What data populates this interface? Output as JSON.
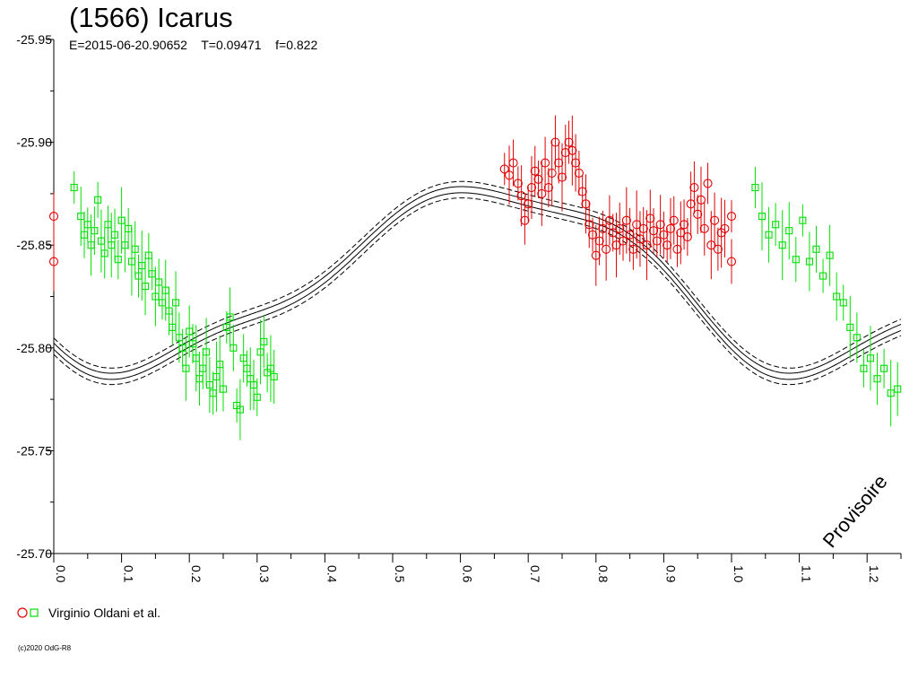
{
  "title": "(1566) Icarus",
  "subtitle": "E=2015-06-20.90652    T=0.09471    f=0.822",
  "watermark": "Provisoire",
  "legend_label": "Virginio Oldani et al.",
  "copyright": "(c)2020 OdG-R8",
  "colors": {
    "red": "#e00000",
    "green": "#00e000",
    "axis": "#000000"
  },
  "chart_data": {
    "type": "scatter",
    "title": "(1566) Icarus",
    "xlabel": "",
    "ylabel": "",
    "xlim": [
      0.0,
      1.25
    ],
    "ylim": [
      -25.95,
      -25.7
    ],
    "y_inverted": true,
    "x_ticks": [
      "0.0",
      "0.1",
      "0.2",
      "0.3",
      "0.4",
      "0.5",
      "0.6",
      "0.7",
      "0.8",
      "0.9",
      "1.0",
      "1.1",
      "1.2"
    ],
    "y_ticks": [
      "-25.95",
      "-25.90",
      "-25.85",
      "-25.80",
      "-25.75",
      "-25.70"
    ],
    "legend": "bottom-left",
    "grid": false,
    "series": [
      {
        "name": "Virginio Oldani et al.",
        "color": "#e00000",
        "marker": "circle",
        "points": [
          [
            0.665,
            -25.887
          ],
          [
            0.672,
            -25.884
          ],
          [
            0.678,
            -25.89
          ],
          [
            0.685,
            -25.88
          ],
          [
            0.69,
            -25.874
          ],
          [
            0.695,
            -25.862
          ],
          [
            0.7,
            -25.87
          ],
          [
            0.705,
            -25.878
          ],
          [
            0.71,
            -25.886
          ],
          [
            0.715,
            -25.882
          ],
          [
            0.72,
            -25.875
          ],
          [
            0.725,
            -25.89
          ],
          [
            0.73,
            -25.878
          ],
          [
            0.735,
            -25.885
          ],
          [
            0.74,
            -25.9
          ],
          [
            0.745,
            -25.89
          ],
          [
            0.75,
            -25.883
          ],
          [
            0.755,
            -25.895
          ],
          [
            0.76,
            -25.9
          ],
          [
            0.765,
            -25.896
          ],
          [
            0.77,
            -25.89
          ],
          [
            0.775,
            -25.885
          ],
          [
            0.78,
            -25.876
          ],
          [
            0.785,
            -25.87
          ],
          [
            0.79,
            -25.86
          ],
          [
            0.795,
            -25.855
          ],
          [
            0.8,
            -25.845
          ],
          [
            0.805,
            -25.852
          ],
          [
            0.81,
            -25.858
          ],
          [
            0.815,
            -25.848
          ],
          [
            0.82,
            -25.862
          ],
          [
            0.825,
            -25.856
          ],
          [
            0.83,
            -25.85
          ],
          [
            0.835,
            -25.858
          ],
          [
            0.84,
            -25.852
          ],
          [
            0.845,
            -25.862
          ],
          [
            0.85,
            -25.855
          ],
          [
            0.855,
            -25.848
          ],
          [
            0.86,
            -25.86
          ],
          [
            0.865,
            -25.853
          ],
          [
            0.87,
            -25.858
          ],
          [
            0.875,
            -25.85
          ],
          [
            0.88,
            -25.863
          ],
          [
            0.885,
            -25.857
          ],
          [
            0.89,
            -25.852
          ],
          [
            0.895,
            -25.86
          ],
          [
            0.9,
            -25.855
          ],
          [
            0.905,
            -25.85
          ],
          [
            0.91,
            -25.858
          ],
          [
            0.915,
            -25.862
          ],
          [
            0.92,
            -25.848
          ],
          [
            0.925,
            -25.856
          ],
          [
            0.93,
            -25.86
          ],
          [
            0.935,
            -25.854
          ],
          [
            0.94,
            -25.87
          ],
          [
            0.945,
            -25.878
          ],
          [
            0.95,
            -25.865
          ],
          [
            0.955,
            -25.872
          ],
          [
            0.96,
            -25.858
          ],
          [
            0.965,
            -25.88
          ],
          [
            0.97,
            -25.85
          ],
          [
            0.975,
            -25.862
          ],
          [
            0.98,
            -25.848
          ],
          [
            0.985,
            -25.856
          ],
          [
            0.99,
            -25.858
          ],
          [
            1.0,
            -25.842
          ],
          [
            1.0,
            -25.864
          ],
          [
            0.0,
            -25.842
          ],
          [
            0.0,
            -25.864
          ]
        ]
      },
      {
        "name": "Virginio Oldani et al.",
        "color": "#00e000",
        "marker": "square",
        "points": [
          [
            0.03,
            -25.878
          ],
          [
            0.04,
            -25.864
          ],
          [
            0.045,
            -25.855
          ],
          [
            0.05,
            -25.86
          ],
          [
            0.055,
            -25.85
          ],
          [
            0.06,
            -25.857
          ],
          [
            0.065,
            -25.872
          ],
          [
            0.07,
            -25.852
          ],
          [
            0.075,
            -25.846
          ],
          [
            0.08,
            -25.86
          ],
          [
            0.085,
            -25.85
          ],
          [
            0.09,
            -25.855
          ],
          [
            0.095,
            -25.843
          ],
          [
            0.1,
            -25.862
          ],
          [
            0.105,
            -25.85
          ],
          [
            0.11,
            -25.858
          ],
          [
            0.115,
            -25.842
          ],
          [
            0.12,
            -25.848
          ],
          [
            0.125,
            -25.835
          ],
          [
            0.13,
            -25.84
          ],
          [
            0.135,
            -25.83
          ],
          [
            0.14,
            -25.845
          ],
          [
            0.145,
            -25.836
          ],
          [
            0.15,
            -25.825
          ],
          [
            0.155,
            -25.832
          ],
          [
            0.16,
            -25.822
          ],
          [
            0.165,
            -25.828
          ],
          [
            0.17,
            -25.818
          ],
          [
            0.175,
            -25.81
          ],
          [
            0.18,
            -25.822
          ],
          [
            0.185,
            -25.805
          ],
          [
            0.19,
            -25.8
          ],
          [
            0.195,
            -25.79
          ],
          [
            0.2,
            -25.808
          ],
          [
            0.205,
            -25.802
          ],
          [
            0.21,
            -25.795
          ],
          [
            0.215,
            -25.785
          ],
          [
            0.22,
            -25.79
          ],
          [
            0.225,
            -25.798
          ],
          [
            0.23,
            -25.782
          ],
          [
            0.235,
            -25.778
          ],
          [
            0.24,
            -25.786
          ],
          [
            0.245,
            -25.792
          ],
          [
            0.25,
            -25.78
          ],
          [
            0.255,
            -25.81
          ],
          [
            0.26,
            -25.815
          ],
          [
            0.265,
            -25.8
          ],
          [
            0.27,
            -25.772
          ],
          [
            0.275,
            -25.77
          ],
          [
            0.28,
            -25.795
          ],
          [
            0.285,
            -25.79
          ],
          [
            0.29,
            -25.785
          ],
          [
            0.295,
            -25.782
          ],
          [
            0.3,
            -25.776
          ],
          [
            0.305,
            -25.798
          ],
          [
            0.31,
            -25.803
          ],
          [
            0.315,
            -25.788
          ],
          [
            0.32,
            -25.79
          ],
          [
            0.325,
            -25.786
          ],
          [
            1.035,
            -25.878
          ],
          [
            1.045,
            -25.864
          ],
          [
            1.055,
            -25.855
          ],
          [
            1.065,
            -25.86
          ],
          [
            1.075,
            -25.85
          ],
          [
            1.085,
            -25.857
          ],
          [
            1.095,
            -25.843
          ],
          [
            1.105,
            -25.862
          ],
          [
            1.115,
            -25.842
          ],
          [
            1.125,
            -25.848
          ],
          [
            1.135,
            -25.835
          ],
          [
            1.145,
            -25.845
          ],
          [
            1.155,
            -25.825
          ],
          [
            1.165,
            -25.822
          ],
          [
            1.175,
            -25.81
          ],
          [
            1.185,
            -25.805
          ],
          [
            1.195,
            -25.79
          ],
          [
            1.205,
            -25.795
          ],
          [
            1.215,
            -25.785
          ],
          [
            1.225,
            -25.79
          ],
          [
            1.235,
            -25.778
          ],
          [
            1.245,
            -25.78
          ]
        ]
      }
    ]
  }
}
